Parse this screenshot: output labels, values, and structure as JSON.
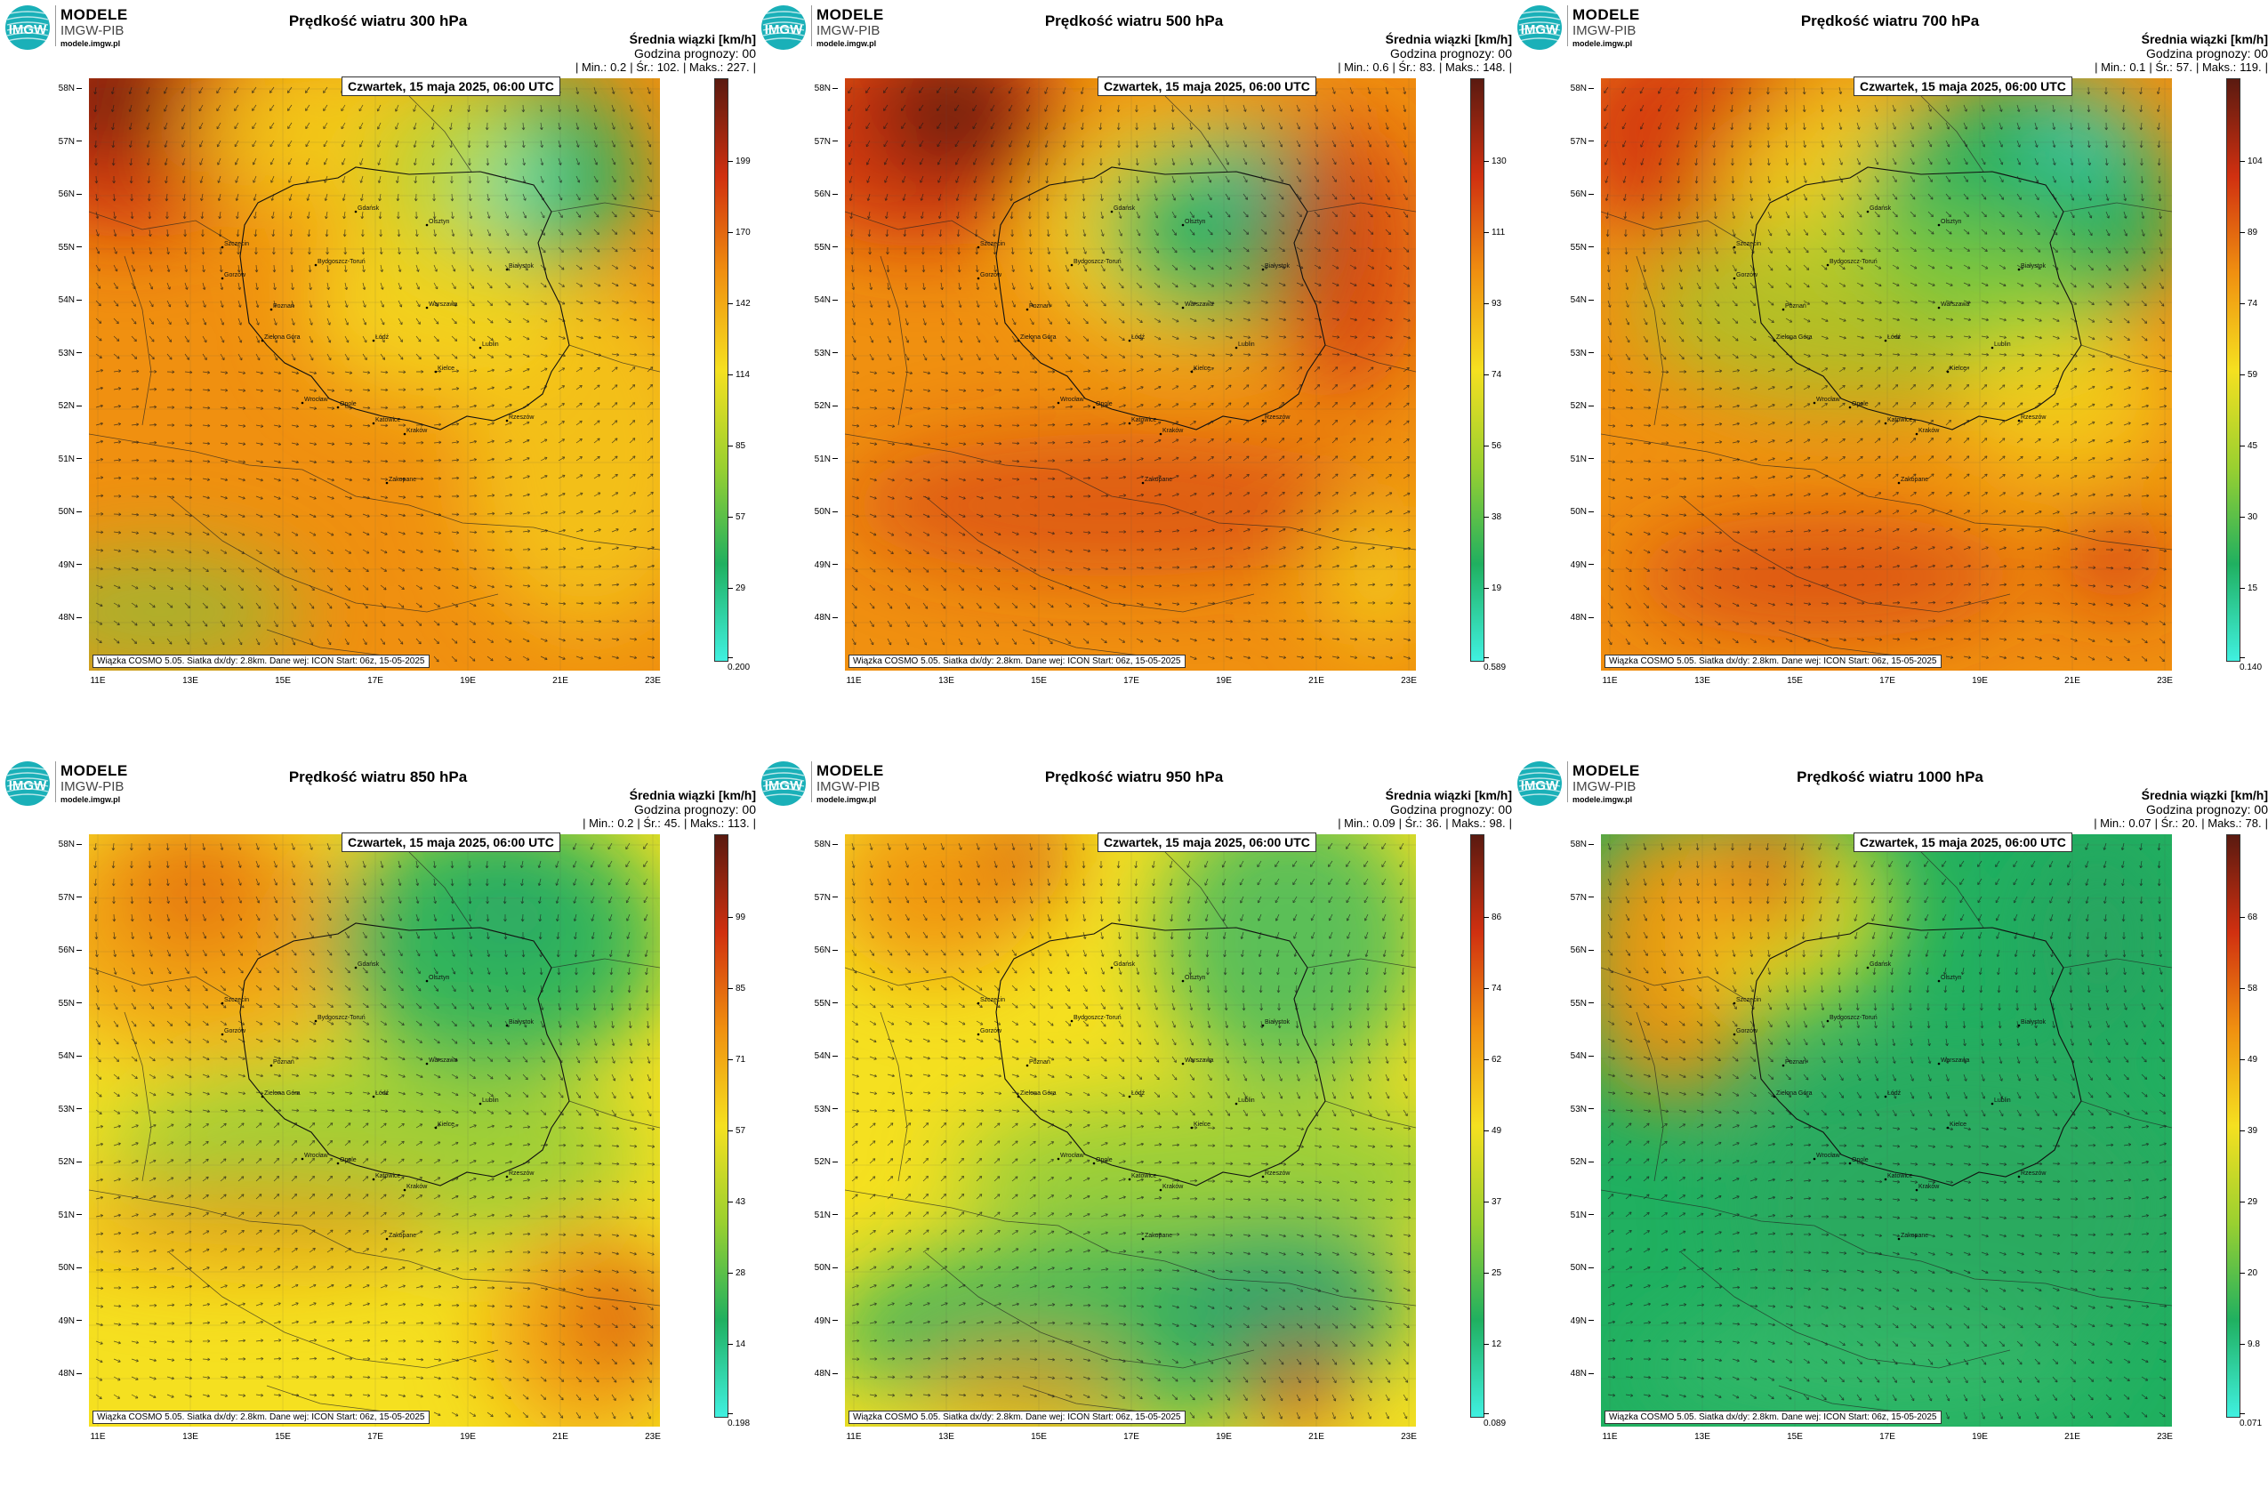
{
  "logo": {
    "brand": "MODELE",
    "org": "IMGW-PIB",
    "url": "modele.imgw.pl",
    "mark": "IMGW"
  },
  "common": {
    "subtitle": "Średnia wiązki [km/h]",
    "forecast_hour": "Godzina prognozy: 00",
    "date": "Czwartek, 15 maja 2025, 06:00 UTC",
    "footer": "Wiązka COSMO 5.05. Siatka dx/dy: 2.8km. Dane wej: ICON Start: 06z, 15-05-2025",
    "lat_labels": [
      "58N",
      "57N",
      "56N",
      "55N",
      "54N",
      "53N",
      "52N",
      "51N",
      "50N",
      "49N",
      "48N"
    ],
    "lon_labels": [
      "11E",
      "13E",
      "15E",
      "17E",
      "19E",
      "21E",
      "23E"
    ],
    "stat_labels": {
      "min": "| Min.:",
      "avg": "| Śr.:",
      "max": "| Maks.:"
    },
    "cities": [
      "Gdańsk",
      "Olsztyn",
      "Szczecin",
      "Bydgoszcz-Toruń",
      "Białystok",
      "Gorzów",
      "Poznań",
      "Warszawa",
      "Zielona Góra",
      "Łódź",
      "Lublin",
      "Wrocław",
      "Kielce",
      "Opole",
      "Katowice",
      "Rzeszów",
      "Kraków",
      "Zakopane"
    ]
  },
  "panels": [
    {
      "title": "Prędkość wiatru 300 hPa",
      "min": "0.2",
      "avg": "102.",
      "max": "227.",
      "colorbar": [
        "199",
        "170",
        "142",
        "114",
        "85",
        "57",
        "29",
        "0.200"
      ],
      "vmax": 227
    },
    {
      "title": "Prędkość wiatru 500 hPa",
      "min": "0.6",
      "avg": "83.",
      "max": "148.",
      "colorbar": [
        "130",
        "111",
        "93",
        "74",
        "56",
        "38",
        "19",
        "0.589"
      ],
      "vmax": 148
    },
    {
      "title": "Prędkość wiatru 700 hPa",
      "min": "0.1",
      "avg": "57.",
      "max": "119.",
      "colorbar": [
        "104",
        "89",
        "74",
        "59",
        "45",
        "30",
        "15",
        "0.140"
      ],
      "vmax": 119
    },
    {
      "title": "Prędkość wiatru 850 hPa",
      "min": "0.2",
      "avg": "45.",
      "max": "113.",
      "colorbar": [
        "99",
        "85",
        "71",
        "57",
        "43",
        "28",
        "14",
        "0.198"
      ],
      "vmax": 113
    },
    {
      "title": "Prędkość wiatru 950 hPa",
      "min": "0.09",
      "avg": "36.",
      "max": "98.",
      "colorbar": [
        "86",
        "74",
        "62",
        "49",
        "37",
        "25",
        "12",
        "0.089"
      ],
      "vmax": 98
    },
    {
      "title": "Prędkość wiatru 1000 hPa",
      "min": "0.07",
      "avg": "20.",
      "max": "78.",
      "colorbar": [
        "68",
        "58",
        "49",
        "39",
        "29",
        "20",
        "9.8",
        "0.071"
      ],
      "vmax": 78
    }
  ],
  "colors": {
    "low": "#40f0e0",
    "green": "#20b060",
    "yellow": "#f5e020",
    "orange": "#f09010",
    "red": "#d03010",
    "darkred": "#5a1a10"
  }
}
